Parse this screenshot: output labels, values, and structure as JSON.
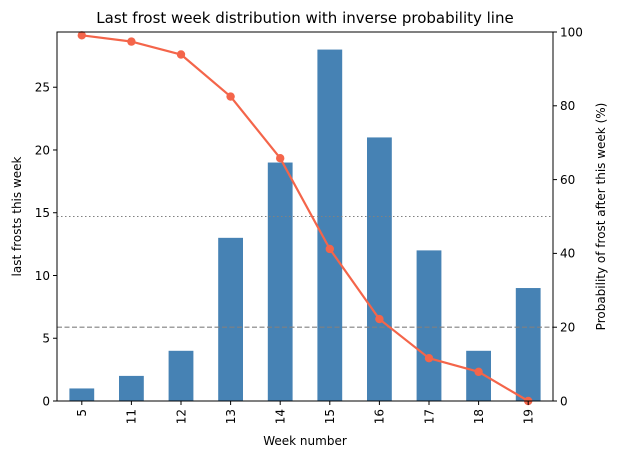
{
  "chart_data": {
    "type": "bar",
    "title": "Last frost week distribution with inverse probability line",
    "xlabel": "Week number",
    "ylabel": "last frosts this week",
    "y2label": "Probability of frost after this week (%)",
    "categories": [
      "5",
      "11",
      "12",
      "13",
      "14",
      "15",
      "16",
      "17",
      "18",
      "19"
    ],
    "series": [
      {
        "type": "bar",
        "axis": "left",
        "values": [
          1,
          2,
          4,
          13,
          19,
          28,
          21,
          12,
          4,
          9
        ],
        "color": "#4682b4"
      },
      {
        "type": "line",
        "axis": "right",
        "values": [
          99.1,
          97.4,
          93.9,
          82.5,
          65.8,
          41.2,
          22.2,
          11.6,
          7.9,
          0.0
        ],
        "color": "#f4654a"
      }
    ],
    "ylim": [
      0,
      29.4
    ],
    "y2lim": [
      0,
      100
    ],
    "yticks": [
      0,
      5,
      10,
      15,
      20,
      25
    ],
    "y2ticks": [
      0,
      20,
      40,
      60,
      80,
      100
    ],
    "reference_lines": [
      {
        "axis": "right",
        "value": 50,
        "style": "dotted",
        "color": "#808080"
      },
      {
        "axis": "right",
        "value": 20,
        "style": "dashed",
        "color": "#808080"
      }
    ],
    "grid": false,
    "legend": "none"
  }
}
